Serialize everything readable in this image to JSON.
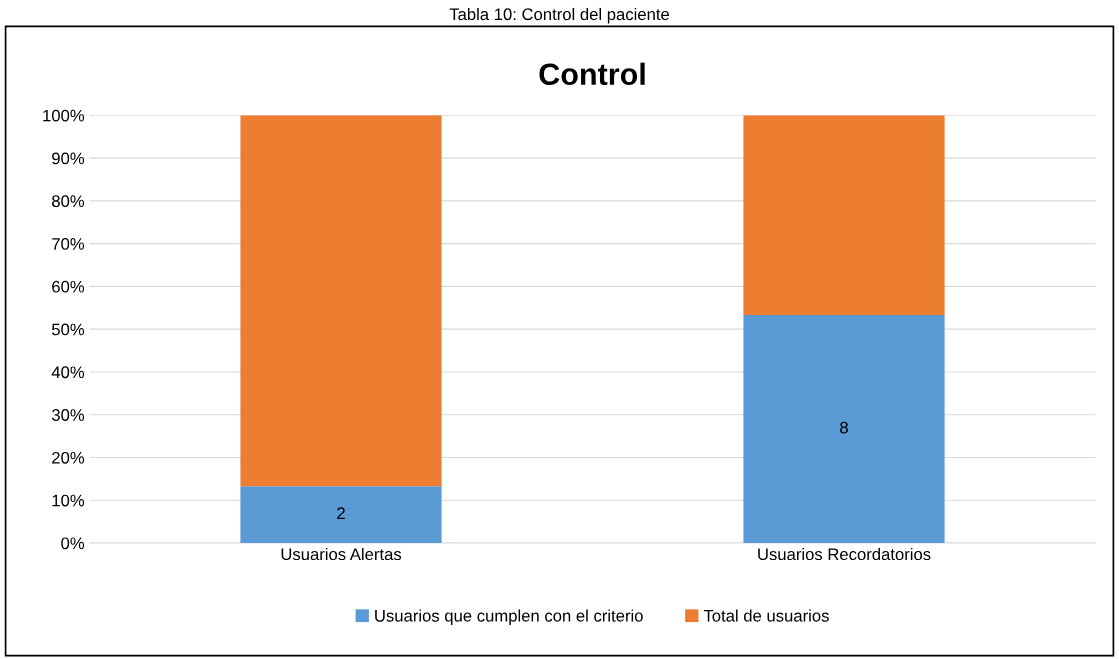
{
  "chart_data": {
    "type": "bar",
    "title": "Control",
    "annotations": [
      "Tabla 10: Control del paciente",
      "2",
      "8"
    ],
    "categories": [
      "Usuarios Alertas",
      "Usuarios Recordatorios"
    ],
    "stacked": true,
    "series": [
      {
        "name": "Usuarios que cumplen con el criterio",
        "color": "#5b9bd5",
        "values": [
          13.3,
          53.3
        ]
      },
      {
        "name": "Total de usuarios",
        "color": "#ed7d31",
        "values": [
          86.7,
          46.7
        ]
      }
    ],
    "ylim": [
      0,
      100
    ],
    "yticks": [
      {
        "value": 0,
        "label": "0%"
      },
      {
        "value": 10,
        "label": "10%"
      },
      {
        "value": 20,
        "label": "20%"
      },
      {
        "value": 30,
        "label": "30%"
      },
      {
        "value": 40,
        "label": "40%"
      },
      {
        "value": 50,
        "label": "50%"
      },
      {
        "value": 60,
        "label": "60%"
      },
      {
        "value": 70,
        "label": "70%"
      },
      {
        "value": 80,
        "label": "80%"
      },
      {
        "value": 90,
        "label": "90%"
      },
      {
        "value": 100,
        "label": "100%"
      }
    ],
    "grid": "y",
    "legend": "bottom"
  }
}
